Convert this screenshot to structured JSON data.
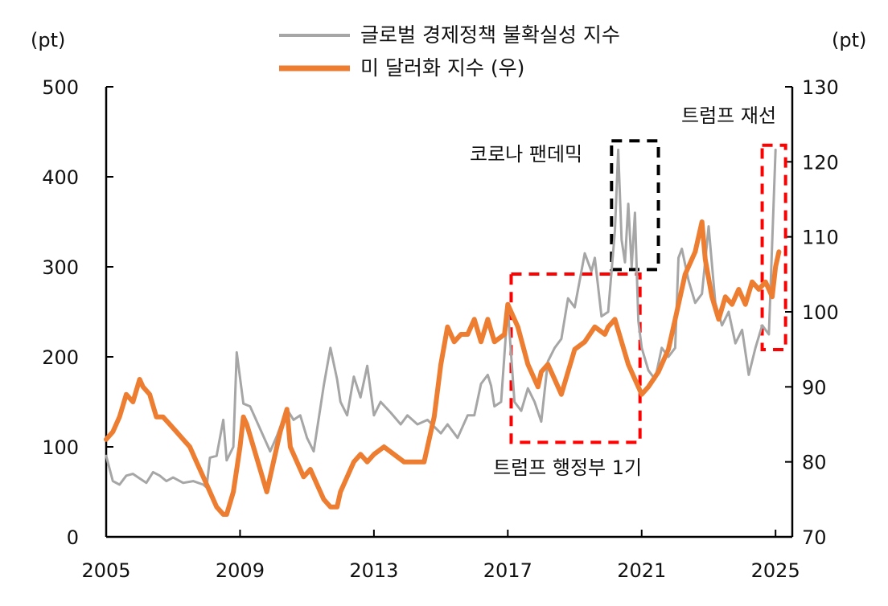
{
  "chart_data": {
    "type": "line",
    "title": "",
    "left_unit": "(pt)",
    "right_unit": "(pt)",
    "left_axis": {
      "min": 0,
      "max": 500,
      "ticks": [
        "0",
        "100",
        "200",
        "300",
        "400",
        "500"
      ]
    },
    "right_axis": {
      "min": 70,
      "max": 130,
      "ticks": [
        "70",
        "80",
        "90",
        "100",
        "110",
        "120",
        "130"
      ]
    },
    "x_axis": {
      "min": 2005,
      "max": 2025.5,
      "ticks": [
        "2005",
        "2009",
        "2013",
        "2017",
        "2021",
        "2025"
      ]
    },
    "grid": false,
    "legend_position": "top-center",
    "series": [
      {
        "name": "글로벌 경제정책 불확실성 지수",
        "axis": "left",
        "color": "#a6a6a6",
        "x": [
          2005.0,
          2005.2,
          2005.4,
          2005.6,
          2005.8,
          2006.0,
          2006.2,
          2006.4,
          2006.6,
          2006.8,
          2007.0,
          2007.3,
          2007.6,
          2007.9,
          2008.0,
          2008.1,
          2008.3,
          2008.5,
          2008.6,
          2008.8,
          2008.9,
          2009.1,
          2009.3,
          2009.6,
          2009.9,
          2010.1,
          2010.4,
          2010.6,
          2010.8,
          2011.0,
          2011.2,
          2011.5,
          2011.7,
          2011.9,
          2012.0,
          2012.2,
          2012.4,
          2012.6,
          2012.8,
          2013.0,
          2013.2,
          2013.5,
          2013.8,
          2014.0,
          2014.3,
          2014.6,
          2015.0,
          2015.2,
          2015.5,
          2015.8,
          2016.0,
          2016.2,
          2016.4,
          2016.5,
          2016.6,
          2016.8,
          2017.0,
          2017.2,
          2017.4,
          2017.6,
          2017.8,
          2018.0,
          2018.2,
          2018.4,
          2018.6,
          2018.8,
          2019.0,
          2019.3,
          2019.5,
          2019.6,
          2019.8,
          2020.0,
          2020.2,
          2020.3,
          2020.4,
          2020.5,
          2020.6,
          2020.7,
          2020.8,
          2020.9,
          2021.0,
          2021.2,
          2021.4,
          2021.6,
          2021.8,
          2022.0,
          2022.1,
          2022.2,
          2022.4,
          2022.6,
          2022.8,
          2023.0,
          2023.2,
          2023.4,
          2023.6,
          2023.8,
          2024.0,
          2024.2,
          2024.4,
          2024.6,
          2024.8,
          2025.0
        ],
        "values": [
          90,
          62,
          58,
          68,
          70,
          65,
          60,
          72,
          68,
          62,
          66,
          60,
          62,
          58,
          55,
          88,
          90,
          130,
          85,
          100,
          205,
          148,
          145,
          120,
          95,
          112,
          142,
          130,
          135,
          110,
          95,
          168,
          210,
          175,
          150,
          135,
          178,
          155,
          190,
          135,
          150,
          138,
          125,
          135,
          125,
          130,
          115,
          125,
          110,
          135,
          135,
          170,
          180,
          168,
          145,
          150,
          255,
          150,
          140,
          165,
          150,
          128,
          195,
          210,
          220,
          265,
          255,
          315,
          295,
          310,
          245,
          250,
          340,
          430,
          330,
          305,
          370,
          300,
          360,
          240,
          210,
          185,
          175,
          210,
          200,
          210,
          310,
          320,
          285,
          260,
          270,
          345,
          260,
          235,
          250,
          215,
          230,
          180,
          210,
          235,
          225,
          430
        ]
      },
      {
        "name": "미 달러화 지수 (우)",
        "axis": "right",
        "color": "#ed7d31",
        "x": [
          2005.0,
          2005.2,
          2005.4,
          2005.6,
          2005.8,
          2006.0,
          2006.1,
          2006.3,
          2006.5,
          2006.7,
          2006.9,
          2007.1,
          2007.3,
          2007.5,
          2007.7,
          2007.9,
          2008.1,
          2008.3,
          2008.5,
          2008.6,
          2008.8,
          2008.9,
          2009.0,
          2009.1,
          2009.2,
          2009.4,
          2009.6,
          2009.8,
          2010.0,
          2010.2,
          2010.4,
          2010.5,
          2010.7,
          2010.9,
          2011.1,
          2011.3,
          2011.5,
          2011.7,
          2011.9,
          2012.0,
          2012.2,
          2012.4,
          2012.6,
          2012.8,
          2013.0,
          2013.3,
          2013.6,
          2013.9,
          2014.2,
          2014.5,
          2014.8,
          2015.0,
          2015.2,
          2015.4,
          2015.6,
          2015.8,
          2016.0,
          2016.2,
          2016.4,
          2016.6,
          2016.9,
          2017.0,
          2017.3,
          2017.6,
          2017.9,
          2018.0,
          2018.2,
          2018.4,
          2018.6,
          2018.8,
          2019.0,
          2019.3,
          2019.6,
          2019.9,
          2020.0,
          2020.2,
          2020.4,
          2020.6,
          2020.8,
          2021.0,
          2021.2,
          2021.5,
          2021.8,
          2022.0,
          2022.3,
          2022.6,
          2022.8,
          2022.9,
          2023.1,
          2023.3,
          2023.5,
          2023.7,
          2023.9,
          2024.1,
          2024.3,
          2024.5,
          2024.7,
          2024.8,
          2024.9,
          2025.0,
          2025.1
        ],
        "values": [
          83,
          84,
          86,
          89,
          88,
          91,
          90,
          89,
          86,
          86,
          85,
          84,
          83,
          82,
          80,
          78,
          76,
          74,
          73,
          73,
          76,
          79,
          82,
          86,
          85,
          82,
          79,
          76,
          80,
          84,
          87,
          82,
          80,
          78,
          79,
          77,
          75,
          74,
          74,
          76,
          78,
          80,
          81,
          80,
          81,
          82,
          81,
          80,
          80,
          80,
          86,
          93,
          98,
          96,
          97,
          97,
          99,
          96,
          99,
          96,
          97,
          101,
          98,
          93,
          90,
          92,
          93,
          91,
          89,
          92,
          95,
          96,
          98,
          97,
          98,
          99,
          96,
          93,
          91,
          89,
          90,
          92,
          95,
          99,
          105,
          108,
          112,
          107,
          102,
          99,
          102,
          101,
          103,
          101,
          104,
          103,
          104,
          103,
          102,
          106,
          108
        ]
      }
    ],
    "annotations": [
      {
        "label": "코로나 팬데믹",
        "x_range": [
          2020.1,
          2021.5
        ],
        "y_range_left": [
          297,
          440
        ],
        "color": "#000000"
      },
      {
        "label": "트럼프 행정부 1기",
        "x_range": [
          2017.1,
          2020.95
        ],
        "y_range_left": [
          105,
          292
        ],
        "color": "#ff0000"
      },
      {
        "label": "트럼프 재선",
        "x_range": [
          2024.6,
          2025.3
        ],
        "y_range_left": [
          208,
          435
        ],
        "color": "#ff0000"
      }
    ]
  }
}
